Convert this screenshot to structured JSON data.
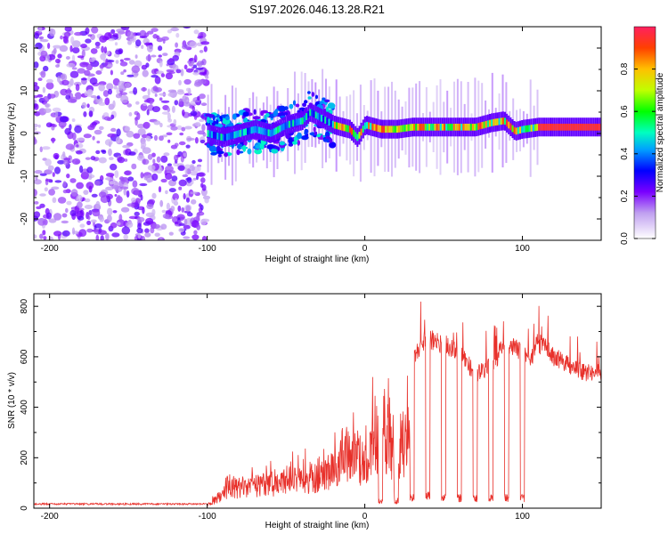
{
  "figure_title": "S197.2026.046.13.28.R21",
  "chart_data": [
    {
      "type": "heatmap",
      "name": "dynamic-spectrum",
      "xlabel": "Height of straight line (km)",
      "ylabel": "Frequency (Hz)",
      "xlim": [
        -210,
        150
      ],
      "ylim": [
        -25,
        25
      ],
      "xticks": [
        -200,
        -100,
        0,
        100
      ],
      "yticks": [
        -20,
        -10,
        0,
        10,
        20
      ],
      "colorbar": {
        "label": "Normalized spectral amplitude",
        "range": [
          0,
          1
        ],
        "ticks": [
          0.0,
          0.2,
          0.4,
          0.6,
          0.8
        ]
      },
      "regions": [
        {
          "x": [
            -210,
            -100
          ],
          "description": "noise",
          "amplitude": 0.15
        },
        {
          "x": [
            -100,
            -20
          ],
          "description": "weak signal near 0 Hz",
          "amplitude": 0.35
        },
        {
          "x": [
            -20,
            110
          ],
          "description": "signal with dropouts",
          "amplitude": 0.8
        },
        {
          "x": [
            110,
            150
          ],
          "description": "strong steady carrier",
          "amplitude": 1.0
        }
      ],
      "carrier_trace": {
        "x": [
          -100,
          -90,
          -80,
          -70,
          -60,
          -50,
          -40,
          -35,
          -30,
          -20,
          -10,
          -5,
          0,
          10,
          20,
          30,
          40,
          50,
          60,
          70,
          80,
          88,
          95,
          100,
          110,
          150
        ],
        "y": [
          0,
          -1,
          0,
          1,
          0,
          2,
          3,
          5,
          4,
          2,
          1,
          -1,
          2,
          1,
          1,
          1.5,
          1.5,
          1.5,
          1.5,
          1.5,
          2.5,
          3,
          0.5,
          1,
          1.5,
          1.5
        ]
      }
    },
    {
      "type": "line",
      "name": "snr",
      "xlabel": "Height of straight line (km)",
      "ylabel": "SNR (10 * v/v)",
      "xlim": [
        -210,
        150
      ],
      "ylim": [
        0,
        850
      ],
      "xticks": [
        -200,
        -100,
        0,
        100
      ],
      "yticks": [
        0,
        200,
        400,
        600,
        800
      ],
      "color": "#e8302a",
      "envelope": {
        "x": [
          -210,
          -100,
          -95,
          -85,
          -75,
          -60,
          -50,
          -40,
          -30,
          -20,
          -15,
          -10,
          -5,
          0,
          5,
          10,
          15,
          20,
          25,
          28,
          30,
          40,
          50,
          60,
          70,
          80,
          90,
          100,
          105,
          110,
          120,
          130,
          140,
          150
        ],
        "y": [
          20,
          20,
          50,
          120,
          130,
          150,
          170,
          180,
          200,
          220,
          350,
          300,
          330,
          250,
          400,
          350,
          420,
          250,
          400,
          430,
          640,
          720,
          690,
          670,
          560,
          600,
          700,
          660,
          620,
          700,
          640,
          600,
          570,
          580
        ]
      },
      "dropouts": [
        {
          "x": 10,
          "y": 30
        },
        {
          "x": 20,
          "y": 30
        },
        {
          "x": 30,
          "y": 40
        },
        {
          "x": 40,
          "y": 50
        },
        {
          "x": 50,
          "y": 40
        },
        {
          "x": 60,
          "y": 40
        },
        {
          "x": 70,
          "y": 40
        },
        {
          "x": 80,
          "y": 40
        },
        {
          "x": 90,
          "y": 40
        },
        {
          "x": 100,
          "y": 40
        }
      ]
    }
  ]
}
